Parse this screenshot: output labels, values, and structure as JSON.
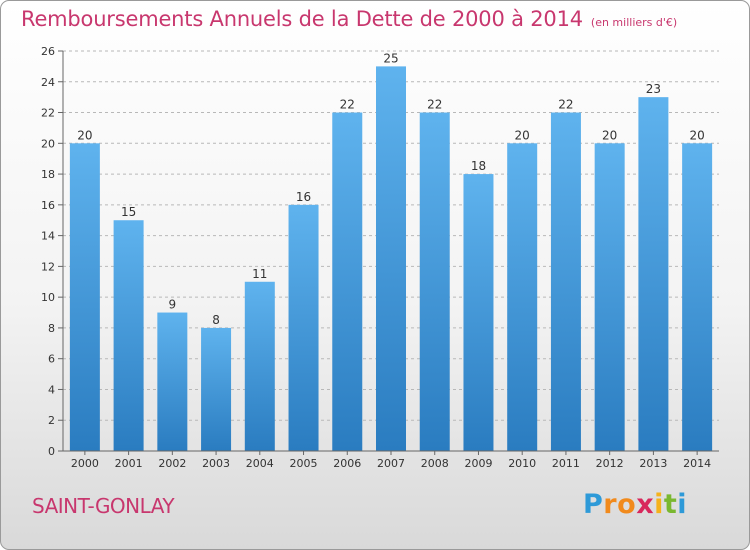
{
  "header": {
    "title": "Remboursements Annuels de la Dette de 2000 à 2014",
    "subtitle": "(en milliers d'€)"
  },
  "footer": {
    "commune": "SAINT-GONLAY",
    "brand_letters": [
      "P",
      "r",
      "o",
      "x",
      "i",
      "t",
      "i"
    ],
    "brand_colors": [
      "#2e9ad8",
      "#f18a1c",
      "#f18a1c",
      "#d8285c",
      "#f5b21b",
      "#7ab82f",
      "#2e9ad8"
    ]
  },
  "colors": {
    "bar_light": "#5fb3ee",
    "bar_dark": "#2a7cc0",
    "axis": "#666666",
    "grid": "#b8b8b8",
    "text": "#333333"
  },
  "chart_data": {
    "type": "bar",
    "categories": [
      "2000",
      "2001",
      "2002",
      "2003",
      "2004",
      "2005",
      "2006",
      "2007",
      "2008",
      "2009",
      "2010",
      "2011",
      "2012",
      "2013",
      "2014"
    ],
    "values": [
      20,
      15,
      9,
      8,
      11,
      16,
      22,
      25,
      22,
      18,
      20,
      22,
      20,
      23,
      20
    ],
    "ylim": [
      0,
      26
    ],
    "yticks": [
      0,
      2,
      4,
      6,
      8,
      10,
      12,
      14,
      16,
      18,
      20,
      22,
      24,
      26
    ],
    "grid": true,
    "legend": "none",
    "data_labels": true
  }
}
